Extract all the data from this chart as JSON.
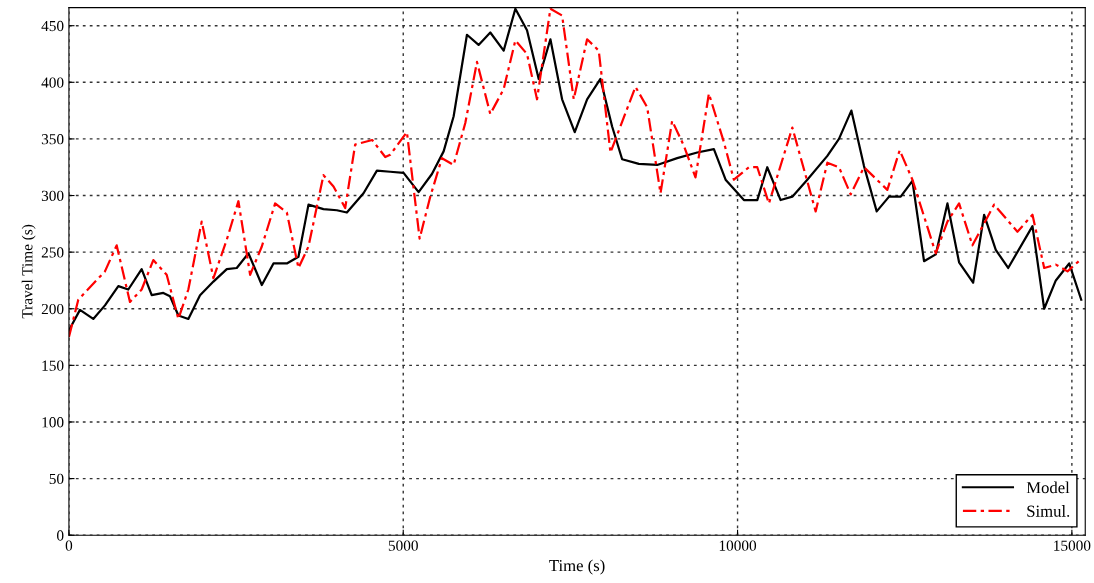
{
  "chart_data": {
    "type": "line",
    "xlabel": "Time (s)",
    "ylabel": "Travel Time (s)",
    "xlim": [
      0,
      15200
    ],
    "xticks": [
      0,
      5000,
      10000,
      15000
    ],
    "ylim": [
      0,
      466
    ],
    "yticks": [
      0,
      50,
      100,
      150,
      200,
      250,
      300,
      350,
      400,
      450
    ],
    "grid": true,
    "legend": "bottom right",
    "marker": "none",
    "series": [
      {
        "name": "Model",
        "color": "#000000",
        "line_style": "solid",
        "x": [
          0,
          165,
          364,
          539,
          739,
          888,
          1088,
          1238,
          1412,
          1512,
          1637,
          1786,
          1961,
          2161,
          2361,
          2510,
          2685,
          2885,
          3059,
          3259,
          3433,
          3583,
          3807,
          4007,
          4157,
          4406,
          4606,
          4805,
          5005,
          5230,
          5429,
          5604,
          5754,
          5953,
          6127,
          6302,
          6502,
          6677,
          6851,
          7026,
          7201,
          7376,
          7565,
          7750,
          7949,
          8124,
          8274,
          8524,
          8798,
          9097,
          9397,
          9646,
          9821,
          10095,
          10295,
          10444,
          10644,
          10819,
          11043,
          11343,
          11517,
          11702,
          11891,
          12081,
          12266,
          12440,
          12615,
          12789,
          12964,
          13139,
          13313,
          13523,
          13688,
          13862,
          14047,
          14411,
          14586,
          14760,
          14960,
          15140
        ],
        "values": [
          181,
          199,
          191,
          203,
          220,
          217,
          235,
          212,
          214,
          211,
          194,
          191,
          212,
          224,
          235,
          236,
          249,
          221,
          240,
          240,
          246,
          292,
          288,
          287,
          285,
          302,
          322,
          321,
          320,
          303,
          319,
          339,
          370,
          442,
          433,
          444,
          428,
          465,
          446,
          403,
          438,
          385,
          356,
          385,
          403,
          361,
          332,
          328,
          327,
          333,
          338,
          341,
          314,
          296,
          296,
          325,
          296,
          299,
          314,
          335,
          350,
          375,
          326,
          286,
          299,
          299,
          313,
          242,
          248,
          293,
          241,
          223,
          283,
          252,
          236,
          273,
          200,
          225,
          240,
          208
        ]
      },
      {
        "name": "Simul.",
        "color": "#ff0000",
        "line_style": "dashed",
        "x": [
          0,
          140,
          314,
          539,
          714,
          913,
          1088,
          1262,
          1462,
          1637,
          1786,
          1986,
          2161,
          2361,
          2535,
          2710,
          2885,
          3084,
          3259,
          3433,
          3583,
          3807,
          3957,
          4132,
          4281,
          4536,
          4731,
          4805,
          5055,
          5245,
          5404,
          5579,
          5754,
          5928,
          6103,
          6302,
          6502,
          6677,
          6851,
          7001,
          7201,
          7376,
          7550,
          7750,
          7924,
          8099,
          8299,
          8473,
          8648,
          8848,
          9022,
          9197,
          9371,
          9571,
          9796,
          9945,
          10170,
          10295,
          10469,
          10819,
          11168,
          11343,
          11517,
          11692,
          11891,
          12240,
          12425,
          12615,
          12964,
          13139,
          13313,
          13513,
          13837,
          14186,
          14411,
          14586,
          14760,
          14935,
          15140
        ],
        "values": [
          175,
          208,
          219,
          233,
          256,
          206,
          217,
          243,
          230,
          191,
          217,
          277,
          227,
          261,
          295,
          230,
          255,
          293,
          285,
          236,
          255,
          318,
          308,
          289,
          345,
          349,
          334,
          336,
          356,
          262,
          299,
          333,
          327,
          364,
          418,
          372,
          394,
          437,
          425,
          385,
          465,
          459,
          385,
          438,
          428,
          338,
          369,
          396,
          378,
          302,
          366,
          344,
          316,
          390,
          347,
          314,
          325,
          325,
          293,
          360,
          286,
          329,
          325,
          301,
          325,
          305,
          340,
          314,
          249,
          277,
          293,
          256,
          292,
          268,
          283,
          236,
          239,
          233,
          244
        ]
      }
    ]
  }
}
